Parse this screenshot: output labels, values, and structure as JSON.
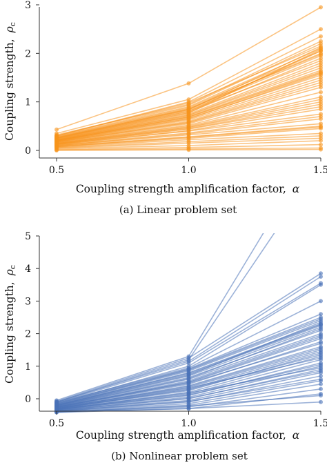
{
  "chart_data": [
    {
      "type": "line",
      "caption": "(a) Linear problem set",
      "xlabel": "Coupling strength amplification factor,",
      "xlabel_symbol": "α",
      "ylabel": "Coupling strength,",
      "ylabel_symbol": "ρ",
      "ylabel_subscript": "c",
      "x": [
        0.5,
        1.0,
        1.5
      ],
      "x_ticks": [
        "0.5",
        "1.0",
        "1.5"
      ],
      "y_ticks": [
        "0",
        "1",
        "2",
        "3"
      ],
      "xlim": [
        0.5,
        1.5
      ],
      "ylim": [
        -0.05,
        3.0
      ],
      "color": "#f7941d",
      "grid": false,
      "series_values": [
        [
          0.43,
          1.38,
          2.95
        ],
        [
          0.35,
          1.05,
          2.5
        ],
        [
          0.3,
          1.0,
          2.35
        ],
        [
          0.32,
          0.95,
          2.25
        ],
        [
          0.28,
          0.9,
          2.1
        ],
        [
          0.3,
          0.98,
          2.15
        ],
        [
          0.27,
          0.88,
          2.05
        ],
        [
          0.26,
          0.85,
          2.0
        ],
        [
          0.25,
          0.83,
          1.95
        ],
        [
          0.24,
          0.8,
          2.05
        ],
        [
          0.23,
          0.78,
          1.9
        ],
        [
          0.22,
          0.75,
          1.8
        ],
        [
          0.21,
          0.72,
          1.7
        ],
        [
          0.2,
          0.7,
          1.65
        ],
        [
          0.2,
          0.68,
          1.6
        ],
        [
          0.19,
          0.66,
          1.55
        ],
        [
          0.18,
          0.63,
          1.5
        ],
        [
          0.18,
          0.6,
          1.45
        ],
        [
          0.17,
          0.58,
          1.4
        ],
        [
          0.16,
          0.55,
          1.3
        ],
        [
          0.15,
          0.52,
          1.2
        ],
        [
          0.15,
          0.5,
          1.1
        ],
        [
          0.14,
          0.47,
          1.0
        ],
        [
          0.13,
          0.44,
          0.9
        ],
        [
          0.12,
          0.4,
          0.75
        ],
        [
          0.11,
          0.36,
          0.7
        ],
        [
          0.1,
          0.32,
          0.55
        ],
        [
          0.09,
          0.28,
          0.5
        ],
        [
          0.08,
          0.25,
          0.45
        ],
        [
          0.07,
          0.22,
          0.35
        ],
        [
          0.06,
          0.18,
          0.3
        ],
        [
          0.05,
          0.15,
          0.25
        ],
        [
          0.04,
          0.1,
          0.2
        ],
        [
          0.02,
          0.06,
          0.12
        ],
        [
          0.01,
          0.03,
          0.05
        ],
        [
          0.0,
          0.01,
          0.02
        ],
        [
          0.29,
          0.93,
          2.2
        ],
        [
          0.26,
          0.86,
          1.98
        ],
        [
          0.24,
          0.81,
          1.85
        ],
        [
          0.21,
          0.73,
          1.75
        ],
        [
          0.19,
          0.65,
          1.58
        ],
        [
          0.17,
          0.57,
          1.35
        ],
        [
          0.14,
          0.48,
          1.05
        ],
        [
          0.12,
          0.41,
          0.85
        ],
        [
          0.1,
          0.34,
          0.65
        ],
        [
          0.08,
          0.27,
          0.48
        ],
        [
          0.22,
          0.77,
          2.08
        ],
        [
          0.25,
          0.84,
          2.12
        ],
        [
          0.2,
          0.69,
          1.62
        ],
        [
          0.13,
          0.45,
          0.95
        ]
      ]
    },
    {
      "type": "line",
      "caption": "(b) Nonlinear problem set",
      "xlabel": "Coupling strength amplification factor,",
      "xlabel_symbol": "α",
      "ylabel": "Coupling strength,",
      "ylabel_symbol": "ρ",
      "ylabel_subscript": "c",
      "x": [
        0.5,
        1.0,
        1.5
      ],
      "x_ticks": [
        "0.5",
        "1.0",
        "1.5"
      ],
      "y_ticks": [
        "0",
        "1",
        "2",
        "3",
        "4",
        "5"
      ],
      "xlim": [
        0.5,
        1.5
      ],
      "ylim": [
        -0.5,
        5.0
      ],
      "color": "#4a72b8",
      "grid": false,
      "series_values": [
        [
          -0.05,
          1.3,
          8.0
        ],
        [
          -0.1,
          1.2,
          7.2
        ],
        [
          -0.08,
          1.25,
          3.85
        ],
        [
          -0.1,
          1.15,
          3.75
        ],
        [
          -0.12,
          1.1,
          3.55
        ],
        [
          -0.15,
          1.0,
          3.5
        ],
        [
          -0.12,
          0.95,
          3.0
        ],
        [
          -0.14,
          0.92,
          2.6
        ],
        [
          -0.16,
          0.9,
          2.5
        ],
        [
          -0.18,
          0.85,
          2.4
        ],
        [
          -0.2,
          0.8,
          2.3
        ],
        [
          -0.2,
          0.75,
          2.25
        ],
        [
          -0.22,
          0.7,
          2.2
        ],
        [
          -0.22,
          0.65,
          2.1
        ],
        [
          -0.24,
          0.6,
          2.0
        ],
        [
          -0.25,
          0.55,
          1.95
        ],
        [
          -0.25,
          0.5,
          1.85
        ],
        [
          -0.26,
          0.45,
          1.75
        ],
        [
          -0.28,
          0.4,
          1.6
        ],
        [
          -0.28,
          0.35,
          1.5
        ],
        [
          -0.3,
          0.3,
          1.45
        ],
        [
          -0.3,
          0.25,
          1.4
        ],
        [
          -0.32,
          0.2,
          1.3
        ],
        [
          -0.32,
          0.15,
          1.2
        ],
        [
          -0.33,
          0.1,
          1.1
        ],
        [
          -0.34,
          0.05,
          1.0
        ],
        [
          -0.35,
          0.0,
          0.9
        ],
        [
          -0.36,
          -0.05,
          0.8
        ],
        [
          -0.37,
          -0.1,
          0.7
        ],
        [
          -0.38,
          -0.15,
          0.55
        ],
        [
          -0.39,
          -0.2,
          0.45
        ],
        [
          -0.4,
          -0.25,
          0.3
        ],
        [
          -0.4,
          -0.3,
          0.15
        ],
        [
          -0.42,
          -0.3,
          -0.1
        ],
        [
          -0.21,
          0.72,
          2.35
        ],
        [
          -0.23,
          0.62,
          2.15
        ],
        [
          -0.27,
          0.48,
          1.7
        ],
        [
          -0.29,
          0.38,
          1.55
        ],
        [
          -0.31,
          0.28,
          1.35
        ],
        [
          -0.34,
          0.12,
          1.05
        ],
        [
          -0.36,
          0.02,
          0.85
        ],
        [
          -0.38,
          -0.08,
          0.6
        ],
        [
          -0.17,
          0.88,
          2.45
        ],
        [
          -0.19,
          0.78,
          2.28
        ],
        [
          -0.26,
          0.52,
          1.9
        ],
        [
          -0.3,
          0.33,
          1.25
        ],
        [
          -0.33,
          0.18,
          0.95
        ],
        [
          -0.41,
          -0.22,
          0.1
        ]
      ]
    }
  ]
}
